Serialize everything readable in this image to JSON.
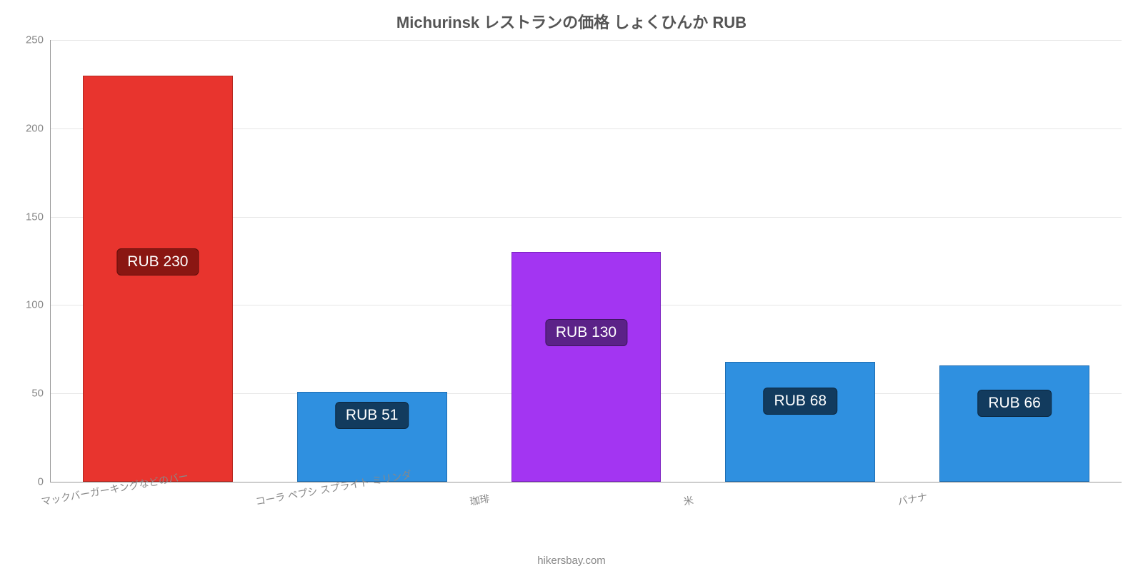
{
  "chart": {
    "type": "bar",
    "title": "Michurinsk レストランの価格 しょくひんか RUB",
    "title_fontsize": 22,
    "title_color": "#555555",
    "ylim": [
      0,
      250
    ],
    "ytick_step": 50,
    "background_color": "#ffffff",
    "grid_color": "#e6e6e6",
    "axis_color": "#999999",
    "tick_label_color": "#888888",
    "tick_label_fontsize": 15,
    "bar_width_ratio": 0.7,
    "bars": [
      {
        "category": "マックバーガーキングなどのバー",
        "value": 230,
        "label": "RUB 230",
        "fill": "#e8342e",
        "border": "#b5271f",
        "badge_bg": "#8a1612",
        "badge_border": "#5e0e0b",
        "badge_text_color": "#ffffff",
        "label_y_value": 125
      },
      {
        "category": "コーラ ペプシ スプライト ミリンダ",
        "value": 51,
        "label": "RUB 51",
        "fill": "#2f90e0",
        "border": "#1e6eb3",
        "badge_bg": "#123b5e",
        "badge_border": "#0b2740",
        "badge_text_color": "#ffffff",
        "label_y_value": 38
      },
      {
        "category": "珈琲",
        "value": 130,
        "label": "RUB 130",
        "fill": "#a335f2",
        "border": "#7d22c2",
        "badge_bg": "#5b2288",
        "badge_border": "#3d1560",
        "badge_text_color": "#ffffff",
        "label_y_value": 85
      },
      {
        "category": "米",
        "value": 68,
        "label": "RUB 68",
        "fill": "#2f90e0",
        "border": "#1e6eb3",
        "badge_bg": "#123b5e",
        "badge_border": "#0b2740",
        "badge_text_color": "#ffffff",
        "label_y_value": 46
      },
      {
        "category": "バナナ",
        "value": 66,
        "label": "RUB 66",
        "fill": "#2f90e0",
        "border": "#1e6eb3",
        "badge_bg": "#123b5e",
        "badge_border": "#0b2740",
        "badge_text_color": "#ffffff",
        "label_y_value": 45
      }
    ],
    "value_label_fontsize": 21,
    "footer": "hikersbay.com",
    "footer_color": "#888888",
    "footer_fontsize": 15
  }
}
